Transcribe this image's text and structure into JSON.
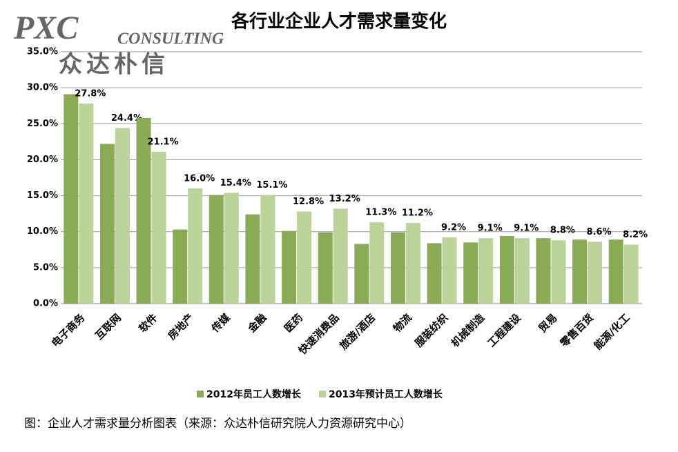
{
  "watermark": {
    "main": "PXC",
    "sub": "CONSULTING",
    "cn": "众达朴信"
  },
  "caption": "图：企业人才需求量分析图表（来源：众达朴信研究院人力资源研究中心）",
  "chart_data": {
    "type": "bar",
    "title": "各行业企业人才需求量变化",
    "categories": [
      "电子商务",
      "互联网",
      "软件",
      "房地产",
      "传媒",
      "金融",
      "医药",
      "快速消费品",
      "旅游/酒店",
      "物流",
      "服装纺织",
      "机械制造",
      "工程建设",
      "贸易",
      "零售百货",
      "能源/化工"
    ],
    "series": [
      {
        "name": "2012年员工人数增长",
        "color": "#8aaa55",
        "values": [
          29.1,
          22.2,
          25.8,
          10.3,
          15.1,
          12.4,
          10.1,
          9.9,
          8.3,
          9.9,
          8.4,
          8.5,
          9.4,
          9.1,
          8.9,
          8.9
        ]
      },
      {
        "name": "2013年预计员工人数增长",
        "color": "#b9d39a",
        "values": [
          27.8,
          24.4,
          21.1,
          16.0,
          15.4,
          15.1,
          12.8,
          13.2,
          11.3,
          11.2,
          9.2,
          9.1,
          9.1,
          8.8,
          8.6,
          8.2
        ],
        "value_labels": [
          "27.8%",
          "24.4%",
          "21.1%",
          "16.0%",
          "15.4%",
          "15.1%",
          "12.8%",
          "13.2%",
          "11.3%",
          "11.2%",
          "9.2%",
          "9.1%",
          "9.1%",
          "8.8%",
          "8.6%",
          "8.2%"
        ]
      }
    ],
    "ylim": [
      0,
      35
    ],
    "yticks": [
      {
        "value": 0,
        "label": "0.0%"
      },
      {
        "value": 5,
        "label": "5.0%"
      },
      {
        "value": 10,
        "label": "10.0%"
      },
      {
        "value": 15,
        "label": "15.0%"
      },
      {
        "value": 20,
        "label": "20.0%"
      },
      {
        "value": 25,
        "label": "25.0%"
      },
      {
        "value": 30,
        "label": "30.0%"
      },
      {
        "value": 35,
        "label": "35.0%"
      }
    ],
    "grid": true,
    "legend": "bottom"
  }
}
